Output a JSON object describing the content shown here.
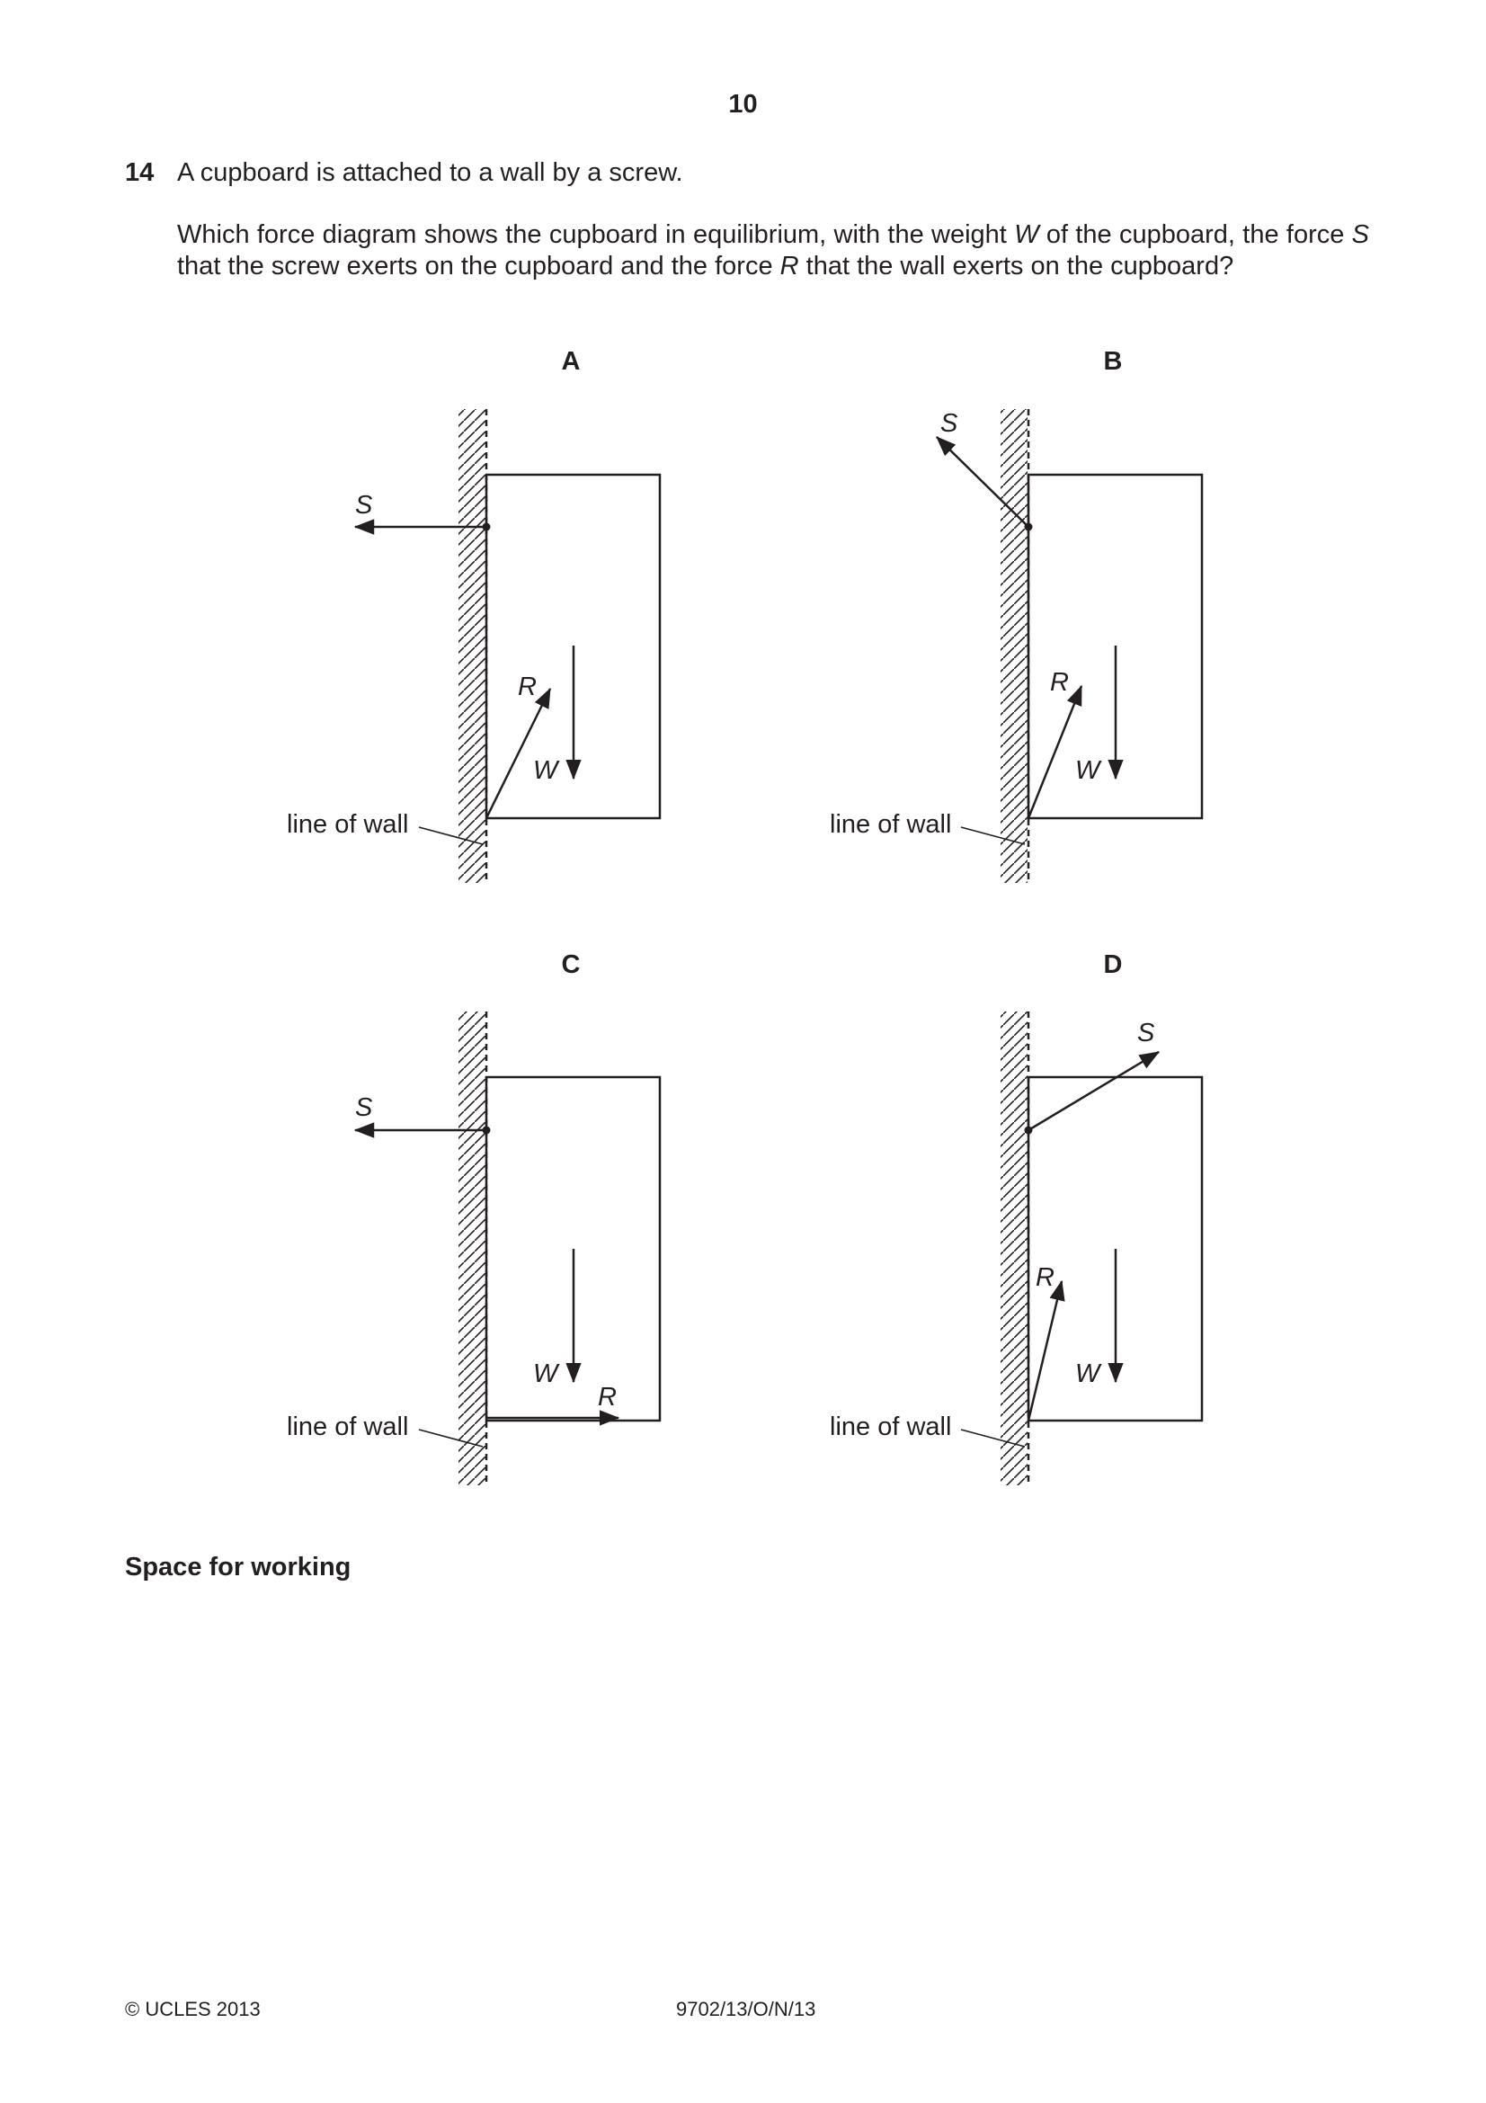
{
  "page": {
    "number": "10"
  },
  "question": {
    "number": "14",
    "stem": "A cupboard is attached to a wall by a screw.",
    "prompt_parts": {
      "p1": "Which force diagram shows the cupboard in equilibrium, with the weight ",
      "w": "W",
      "p2": " of the cupboard, the force ",
      "s": "S",
      "p3": " that the screw exerts on the cupboard and the force ",
      "r": "R",
      "p4": " that the wall exerts on the cupboard?"
    }
  },
  "options": [
    {
      "letter": "A",
      "s_label": "S",
      "r_label": "R",
      "w_label": "W",
      "wall_label": "line of wall"
    },
    {
      "letter": "B",
      "s_label": "S",
      "r_label": "R",
      "w_label": "W",
      "wall_label": "line of wall"
    },
    {
      "letter": "C",
      "s_label": "S",
      "r_label": "R",
      "w_label": "W",
      "wall_label": "line of wall"
    },
    {
      "letter": "D",
      "s_label": "S",
      "r_label": "R",
      "w_label": "W",
      "wall_label": "line of wall"
    }
  ],
  "working": {
    "heading": "Space for working"
  },
  "footer": {
    "copyright": "© UCLES 2013",
    "code": "9702/13/O/N/13"
  }
}
